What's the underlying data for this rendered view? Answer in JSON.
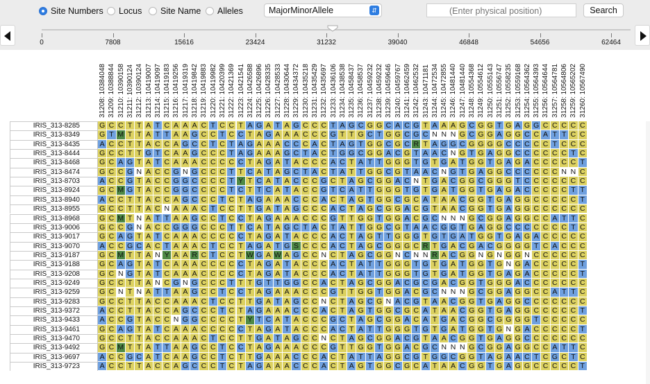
{
  "toolbar": {
    "radios": [
      {
        "label": "Site Numbers",
        "selected": true
      },
      {
        "label": "Locus",
        "selected": false
      },
      {
        "label": "Site Name",
        "selected": false
      },
      {
        "label": "Alleles",
        "selected": false
      }
    ],
    "color_mode_select": "MajorMinorAllele",
    "position_placeholder": "(Enter physical position)",
    "search_label": "Search"
  },
  "slider": {
    "tick_labels": [
      "0",
      "7808",
      "15616",
      "23424",
      "31232",
      "39040",
      "46848",
      "54656",
      "62464"
    ],
    "position_value": 31232
  },
  "colors": {
    "major": "#dcd160",
    "minor": "#6fa0df",
    "hetero": "#4f8a46",
    "missing": "#ffffff"
  },
  "columns": [
    "31208: 10384048",
    "31209: 10388844",
    "31210: 10390158",
    "31211: 10390124",
    "31212: 10390124",
    "31213: 10419007",
    "31214: 10419097",
    "31215: 10419183",
    "31216: 10419256",
    "31217: 10419319",
    "31218: 10419842",
    "31219: 10419883",
    "31220: 10419982",
    "31221: 10420399",
    "31222: 10421369",
    "31223: 10421541",
    "31224: 10426588",
    "31225: 10426896",
    "31226: 10428335",
    "31227: 10428533",
    "31228: 10430644",
    "31229: 10434372",
    "31230: 10435218",
    "31231: 10435429",
    "31232: 10435697",
    "31233: 10436106",
    "31234: 10438538",
    "31235: 10458437",
    "31236: 10458537",
    "31237: 10459232",
    "31238: 10459232",
    "31239: 10459646",
    "31240: 10459767",
    "31241: 10462459",
    "31242: 10462532",
    "31243: 10471181",
    "31244: 10472534",
    "31245: 10472855",
    "31246: 10481440",
    "31247: 10481440",
    "31248: 10554368",
    "31249: 10554612",
    "31250: 10555143",
    "31251: 10556747",
    "31252: 10558235",
    "31253: 10559168",
    "31254: 10564362",
    "31255: 10564393",
    "31256: 10564644",
    "31257: 10564781",
    "31258: 10564806",
    "31259: 10565202",
    "31260: 10567490"
  ],
  "rows": [
    {
      "name": "IRIS_313-8285",
      "seq": "GCCTTATCAAACTCCTAGATAGCCCTAGCGGCACGTAAAGCGGTGAGGCCCCCCT"
    },
    {
      "name": "IRIS_313-8349",
      "seq": "GTMTTATTAAGCCTCCTAGAAACCCGTTGCTGGCGCNNNGCGGAGGCCATTCC"
    },
    {
      "name": "IRIS_313-8435",
      "seq": "ACCTTACCAGCCTCTAGAAACCCACTAGTGGCGCRTAGGCGGGGCCCCCTC"
    },
    {
      "name": "IRIS_313-8444",
      "seq": "GCCTTGTCAAGCCCTAGAAAGCTACTGGCGGACGTAACNGTGAGGCCCCCCT"
    },
    {
      "name": "IRIS_313-8468",
      "seq": "GCAGTATCAAACCCCCTAGATACCCACTATTGGGTGTGATGGTGAGACCCCCTTN"
    },
    {
      "name": "IRIS_313-8474",
      "seq": "GCCGNACCGNGCCCTTCATAGCTACTATTGGCGTAACNGTGAGGCCCCCCNN"
    },
    {
      "name": "IRIS_313-8703",
      "seq": "ACCGTACCGGCCCCTYTCATACCCGCTAGCGGACNTGACGGCGGGTCCCCCCC"
    },
    {
      "name": "IRIS_313-8924",
      "seq": "GCMGTACCGGCCCCTCTTCATACCGTCATTGGGTGTGATGGTGAGACCCCCTTC"
    },
    {
      "name": "IRIS_313-8940",
      "seq": "ACCTTACCAGCCCTCTAGAAACCCACTAGTGGCGCATAACGGTGAGGCCCCCTC"
    },
    {
      "name": "IRIS_313-8955",
      "seq": "GCCTTACNAAACTCCTTGATAGCCCACTAGCGGACGTAACGGTGAGGCCCCCCCC"
    },
    {
      "name": "IRIS_313-8968",
      "seq": "GCMTNATTAAGCCTCCTAGAAACCCGTTGGTGGACGCNNNGCGGAGGCCATTCC"
    },
    {
      "name": "IRIS_313-9006",
      "seq": "GCCGNACCGGGCCCTTCATAGCTACTATTGGCGTAACGGTGAGGCCCCCCCT"
    },
    {
      "name": "IRIS_313-9017",
      "seq": "GCAGTATCAAACCCCCTAGATACCCACTAGTTGGGTGTGATGGTGAGACCCCCTTC"
    },
    {
      "name": "IRIS_313-9070",
      "seq": "ACCGCACTAAACTCCTAGATGSCCCACTAGCGGGCRTGACGACGGGGTCACCCC"
    },
    {
      "name": "IRIS_313-9187",
      "seq": "GCMTTANYAARCTCCTWGAWAGCCNCTAGCGGNCNNRACGGNGNGGNCCCCCCC"
    },
    {
      "name": "IRIS_313-9188",
      "seq": "GCAGTATCAAACCCCCTAGATACCCACTATTGGGTGTGATGGTGNGACCCCCTTN"
    },
    {
      "name": "IRIS_313-9208",
      "seq": "GCNGTATCAAACCCCCTAGATACCCACTATTGGGTGTGATGGTGAGACCCCCTTC"
    },
    {
      "name": "IRIS_313-9249",
      "seq": "GCCTTANCGNGCCCTTTGTTGGCCACTAGCGGACGCGACGGTGGGACCCCCCCT"
    },
    {
      "name": "IRIS_313-9259",
      "seq": "GCNTNATTAAGCCTCCTAGAAACCCGTTGGTGGACGCNNNGCGGAGGCCATTCC"
    },
    {
      "name": "IRIS_313-9283",
      "seq": "GCCTTACCAAACTCCTTGATAGCCNCTAGCGNACGTAACGGTGAGGCCCCCCCC"
    },
    {
      "name": "IRIS_313-9372",
      "seq": "ACCTTACCAGCCCTCTAGAAACCCACTAGTGGCGCATAACGGTGAGGCCCCCTC"
    },
    {
      "name": "IRIS_313-9433",
      "seq": "ACCGTACCNGGCCCCTYTCATACCCGCTAGCGGACATGACGGCGGGGTCCCCCCC"
    },
    {
      "name": "IRIS_313-9461",
      "seq": "GCAGTATCAAACCCCCTAGATACCCACTATTGGGTGTGATGGTGNGACCCCCTTC"
    },
    {
      "name": "IRIS_313-9470",
      "seq": "GCCTTACCAAACTCCTTGATAGCCNCTAGCGGACGTAACGGTGAGGCCCCCCCC"
    },
    {
      "name": "IRIS_313-9492",
      "seq": "GCMTTATTAAGCCTCCTAGAAACCCGTTGGTGGACGCNNNGCGGAGGCCATTCC"
    },
    {
      "name": "IRIS_313-9697",
      "seq": "ACCGCATCAAGCCTCTTGAAACCCACTATTAGGCGTGGCGGTAGAACTCGCTCC"
    },
    {
      "name": "IRIS_313-9723",
      "seq": "ACCTTACCAGCCCTCTAGAAACCCACTAGTGGCGCATAACGGTGAGGCCCCCTC"
    }
  ]
}
